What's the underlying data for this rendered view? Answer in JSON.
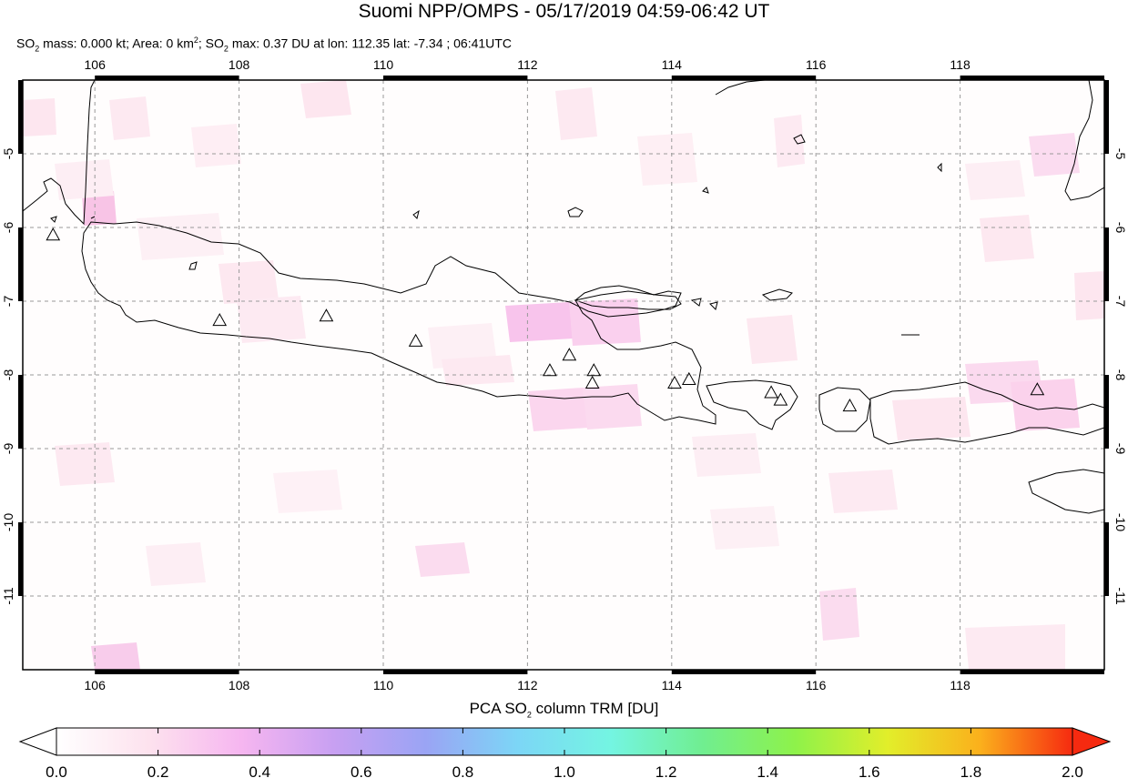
{
  "title": "Suomi NPP/OMPS - 05/17/2019 04:59-06:42 UT",
  "subtitle": {
    "prefix": "SO",
    "sub1": "2",
    "mass_text": " mass: 0.000 kt; Area: 0 km",
    "sup1": "2",
    "mid_text": "; SO",
    "sub2": "2",
    "rest_text": " max: 0.37 DU at lon: 112.35 lat: -7.34 ; 06:41UTC"
  },
  "map": {
    "lon_range": [
      105.0,
      120.0
    ],
    "lat_range": [
      -12.0,
      -4.0
    ],
    "lon_ticks": [
      106,
      108,
      110,
      112,
      114,
      116,
      118
    ],
    "lat_ticks": [
      -5,
      -6,
      -7,
      -8,
      -9,
      -10,
      -11
    ],
    "lon_tick_labels": [
      "106",
      "108",
      "110",
      "112",
      "114",
      "116",
      "118"
    ],
    "lat_tick_labels": [
      "-5",
      "-6",
      "-7",
      "-8",
      "-9",
      "-10",
      "-11"
    ],
    "grid": "dashed",
    "volcano_marker": "triangle",
    "volcanoes": [
      {
        "lon": 105.42,
        "lat": -6.1
      },
      {
        "lon": 107.73,
        "lat": -7.26
      },
      {
        "lon": 109.21,
        "lat": -7.2
      },
      {
        "lon": 110.45,
        "lat": -7.54
      },
      {
        "lon": 112.31,
        "lat": -7.94
      },
      {
        "lon": 112.58,
        "lat": -7.73
      },
      {
        "lon": 112.92,
        "lat": -7.94
      },
      {
        "lon": 112.9,
        "lat": -8.11
      },
      {
        "lon": 114.04,
        "lat": -8.11
      },
      {
        "lon": 114.24,
        "lat": -8.06
      },
      {
        "lon": 115.38,
        "lat": -8.24
      },
      {
        "lon": 115.51,
        "lat": -8.34
      },
      {
        "lon": 116.47,
        "lat": -8.42
      },
      {
        "lon": 119.07,
        "lat": -8.2
      }
    ]
  },
  "colorbar": {
    "title_prefix": "PCA SO",
    "title_sub": "2",
    "title_suffix": " column TRM [DU]",
    "min": 0.0,
    "max": 2.0,
    "tick_labels": [
      "0.0",
      "0.2",
      "0.4",
      "0.6",
      "0.8",
      "1.0",
      "1.2",
      "1.4",
      "1.6",
      "1.8",
      "2.0"
    ],
    "colors": [
      "#ffffff",
      "#fde2ee",
      "#f6b6f0",
      "#c8a0f2",
      "#9aa4f4",
      "#7cd6f6",
      "#74f5e2",
      "#70ee90",
      "#8ef24a",
      "#e2ee2a",
      "#fbb01c",
      "#f62a10"
    ]
  }
}
